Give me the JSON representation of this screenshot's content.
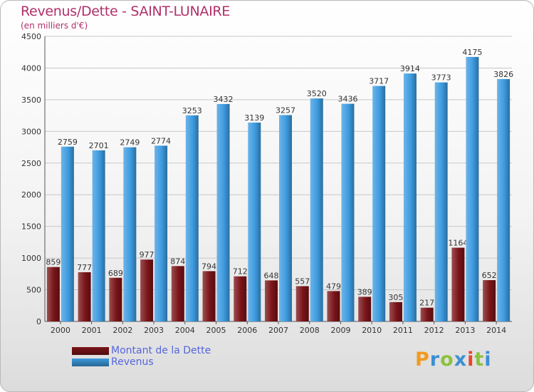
{
  "header": {
    "title": "Revenus/Dette - SAINT-LUNAIRE",
    "subtitle": "(en milliers d'€)"
  },
  "chart_data": {
    "type": "bar",
    "categories": [
      "2000",
      "2001",
      "2002",
      "2003",
      "2004",
      "2005",
      "2006",
      "2007",
      "2008",
      "2009",
      "2010",
      "2011",
      "2012",
      "2013",
      "2014"
    ],
    "series": [
      {
        "name": "Montant de la Dette",
        "color": "#7a1418",
        "values": [
          859,
          777,
          689,
          977,
          874,
          794,
          712,
          648,
          557,
          479,
          389,
          305,
          217,
          1164,
          652
        ],
        "labels": [
          "859",
          "777",
          "689",
          "977",
          "874",
          "794",
          "712",
          "648",
          "557",
          "479",
          "389",
          "305",
          "217",
          "1164",
          "652"
        ]
      },
      {
        "name": "Revenus",
        "color": "#3d9be0",
        "values": [
          2759,
          2701,
          2749,
          2774,
          3253,
          3432,
          3139,
          3257,
          3520,
          3436,
          3717,
          3914,
          3773,
          4175,
          3826
        ],
        "labels": [
          "2759",
          "2701",
          "2749",
          "2774",
          "3253",
          "3432",
          "3139",
          "3257",
          "3520",
          "3436",
          "3717",
          "3914",
          "3773",
          "4175",
          "3826"
        ]
      }
    ],
    "ylim": [
      0,
      4500
    ],
    "yticks": [
      "0",
      "500",
      "1000",
      "1500",
      "2000",
      "2500",
      "3000",
      "3500",
      "4000",
      "4500"
    ],
    "grid": true,
    "legend_position": "bottom-left"
  },
  "legend": {
    "items": [
      {
        "label": "Montant de la Dette",
        "color": "#7a1418"
      },
      {
        "label": "Revenus",
        "color": "#3d9be0"
      }
    ]
  },
  "logo": {
    "letters": [
      "P",
      "r",
      "o",
      "x",
      "i",
      "t",
      "i"
    ],
    "colors": [
      "#f29a1e",
      "#3c8fd4",
      "#8cc23f",
      "#3c8fd4",
      "#e8452c",
      "#8cc23f",
      "#3c8fd4"
    ]
  }
}
